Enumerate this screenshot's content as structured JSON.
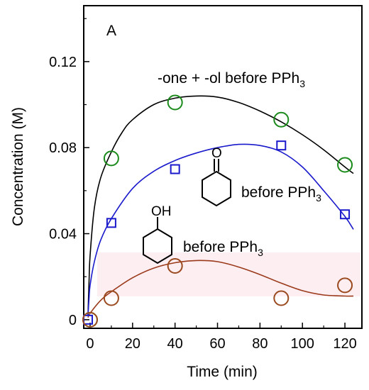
{
  "chart_data": {
    "type": "scatter",
    "panel_label": "A",
    "xlabel": "Time (min)",
    "ylabel": "Concentration  (M)",
    "xlim": [
      -3,
      128
    ],
    "ylim": [
      -0.004,
      0.146
    ],
    "xticks": [
      0,
      20,
      40,
      60,
      80,
      100,
      120
    ],
    "yticks": [
      0,
      0.04,
      0.08,
      0.12
    ],
    "ytick_labels": [
      "0",
      "0.04",
      "0.08",
      "0.12"
    ],
    "grid": false,
    "legend": "none",
    "series": [
      {
        "label_text": "-one + -ol before PPh",
        "label_sub": "3",
        "marker": "circle",
        "color": "#1a8a1a",
        "curve_color": "#000000",
        "points": [
          [
            0,
            0
          ],
          [
            10,
            0.075
          ],
          [
            40,
            0.101
          ],
          [
            90,
            0.093
          ],
          [
            120,
            0.072
          ]
        ],
        "curve": [
          [
            -1,
            0.002
          ],
          [
            -0.5,
            0.018
          ],
          [
            0,
            0.03
          ],
          [
            2,
            0.052
          ],
          [
            5,
            0.066
          ],
          [
            10,
            0.078
          ],
          [
            15,
            0.087
          ],
          [
            20,
            0.093
          ],
          [
            30,
            0.1
          ],
          [
            40,
            0.103
          ],
          [
            50,
            0.104
          ],
          [
            60,
            0.1035
          ],
          [
            70,
            0.101
          ],
          [
            80,
            0.097
          ],
          [
            90,
            0.092
          ],
          [
            100,
            0.086
          ],
          [
            110,
            0.079
          ],
          [
            120,
            0.071
          ],
          [
            124,
            0.068
          ]
        ]
      },
      {
        "label_text": "before PPh",
        "label_sub": "3",
        "marker": "square",
        "color": "#1a1acc",
        "curve_color": "#1a1acc",
        "points": [
          [
            -1,
            0
          ],
          [
            10,
            0.045
          ],
          [
            40,
            0.07
          ],
          [
            90,
            0.081
          ],
          [
            120,
            0.049
          ]
        ],
        "curve": [
          [
            -1,
            0.002
          ],
          [
            -0.5,
            0.01
          ],
          [
            0,
            0.016
          ],
          [
            2,
            0.027
          ],
          [
            5,
            0.037
          ],
          [
            10,
            0.047
          ],
          [
            20,
            0.061
          ],
          [
            30,
            0.069
          ],
          [
            40,
            0.074
          ],
          [
            50,
            0.0775
          ],
          [
            60,
            0.08
          ],
          [
            70,
            0.0815
          ],
          [
            80,
            0.081
          ],
          [
            90,
            0.078
          ],
          [
            100,
            0.071
          ],
          [
            110,
            0.06
          ],
          [
            120,
            0.048
          ],
          [
            124,
            0.042
          ]
        ]
      },
      {
        "label_text": "before PPh",
        "label_sub": "3",
        "marker": "circle",
        "color": "#9a4a1e",
        "curve_color": "#9a3a1a",
        "points": [
          [
            0,
            0
          ],
          [
            10,
            0.01
          ],
          [
            40,
            0.025
          ],
          [
            90,
            0.01
          ],
          [
            120,
            0.016
          ]
        ],
        "curve": [
          [
            -1,
            0.001
          ],
          [
            0,
            0.003
          ],
          [
            5,
            0.009
          ],
          [
            10,
            0.013
          ],
          [
            20,
            0.0195
          ],
          [
            30,
            0.024
          ],
          [
            40,
            0.0265
          ],
          [
            50,
            0.0275
          ],
          [
            60,
            0.027
          ],
          [
            70,
            0.0245
          ],
          [
            80,
            0.021
          ],
          [
            90,
            0.017
          ],
          [
            100,
            0.0135
          ],
          [
            110,
            0.0115
          ],
          [
            120,
            0.011
          ],
          [
            124,
            0.011
          ]
        ]
      }
    ],
    "structure_atoms": {
      "ketone": "O",
      "alcohol": "OH"
    }
  }
}
